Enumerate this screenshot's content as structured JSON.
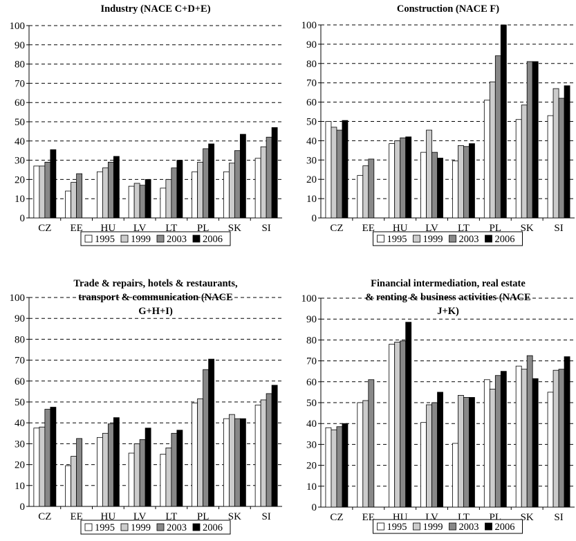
{
  "chart_data": [
    {
      "type": "bar",
      "title": "Industry (NACE C+D+E)",
      "categories": [
        "CZ",
        "EE",
        "HU",
        "LV",
        "LT",
        "PL",
        "SK",
        "SI"
      ],
      "ylim": [
        0,
        100
      ],
      "yticks": [
        0,
        10,
        20,
        30,
        40,
        50,
        60,
        70,
        80,
        90,
        100
      ],
      "grid": true,
      "legend": "bottom",
      "series": [
        {
          "name": "1995",
          "color": "#ffffff",
          "values": [
            27,
            14,
            24,
            16.5,
            15.5,
            24,
            24,
            31
          ]
        },
        {
          "name": "1999",
          "color": "#cccccc",
          "values": [
            27,
            18.5,
            26,
            18,
            20,
            29,
            28.5,
            37
          ]
        },
        {
          "name": "2003",
          "color": "#888888",
          "values": [
            29,
            23,
            29,
            17,
            26,
            36,
            35,
            42
          ]
        },
        {
          "name": "2006",
          "color": "#000000",
          "values": [
            35.5,
            null,
            32,
            20,
            30,
            38.5,
            43.5,
            47
          ]
        }
      ]
    },
    {
      "type": "bar",
      "title": "Construction (NACE F)",
      "categories": [
        "CZ",
        "EE",
        "HU",
        "LV",
        "LT",
        "PL",
        "SK",
        "SI"
      ],
      "ylim": [
        0,
        100
      ],
      "yticks": [
        0,
        10,
        20,
        30,
        40,
        50,
        60,
        70,
        80,
        90,
        100
      ],
      "grid": true,
      "legend": "bottom",
      "series": [
        {
          "name": "1995",
          "color": "#ffffff",
          "values": [
            50,
            22,
            38.5,
            34,
            29.5,
            61,
            51,
            53
          ]
        },
        {
          "name": "1999",
          "color": "#cccccc",
          "values": [
            47,
            27,
            40,
            45.5,
            37.5,
            70.5,
            58.5,
            67
          ]
        },
        {
          "name": "2003",
          "color": "#888888",
          "values": [
            45.5,
            30.5,
            41.5,
            34,
            37,
            84,
            81,
            62
          ]
        },
        {
          "name": "2006",
          "color": "#000000",
          "values": [
            50.5,
            null,
            42,
            31,
            38.5,
            100,
            81,
            68.5
          ]
        }
      ]
    },
    {
      "type": "bar",
      "title": "Trade & repairs, hotels & restaurants, transport & communication (NACE G+H+I)",
      "title_lines": [
        "Trade & repairs, hotels & restaurants,",
        "transport & communication (NACE",
        "G+H+I)"
      ],
      "categories": [
        "CZ",
        "EE",
        "HU",
        "LV",
        "LT",
        "PL",
        "SK",
        "SI"
      ],
      "ylim": [
        0,
        100
      ],
      "yticks": [
        0,
        10,
        20,
        30,
        40,
        50,
        60,
        70,
        80,
        90,
        100
      ],
      "grid": true,
      "legend": "bottom",
      "series": [
        {
          "name": "1995",
          "color": "#ffffff",
          "values": [
            37.5,
            19.5,
            33,
            25.5,
            25,
            49.5,
            42,
            48.5
          ]
        },
        {
          "name": "1999",
          "color": "#cccccc",
          "values": [
            38,
            24,
            35,
            30,
            28,
            51.5,
            44,
            51
          ]
        },
        {
          "name": "2003",
          "color": "#888888",
          "values": [
            46.5,
            32.5,
            39.5,
            32,
            35,
            65.5,
            42,
            54
          ]
        },
        {
          "name": "2006",
          "color": "#000000",
          "values": [
            47.5,
            null,
            42.5,
            37.5,
            36.5,
            70.5,
            42,
            58
          ]
        }
      ]
    },
    {
      "type": "bar",
      "title": "Financial intermediation, real estate & renting & business activities (NACE J+K)",
      "title_lines": [
        "Financial intermediation, real estate",
        "& renting & business activities (NACE",
        "J+K)"
      ],
      "categories": [
        "CZ",
        "EE",
        "HU",
        "LV",
        "LT",
        "PL",
        "SK",
        "SI"
      ],
      "ylim": [
        0,
        100
      ],
      "yticks": [
        0,
        10,
        20,
        30,
        40,
        50,
        60,
        70,
        80,
        90,
        100
      ],
      "grid": true,
      "legend": "bottom",
      "series": [
        {
          "name": "1995",
          "color": "#ffffff",
          "values": [
            38,
            50,
            78,
            40.5,
            30.5,
            61,
            67.5,
            55
          ]
        },
        {
          "name": "1999",
          "color": "#cccccc",
          "values": [
            37,
            51,
            79,
            49,
            53.5,
            56.5,
            66,
            65.5
          ]
        },
        {
          "name": "2003",
          "color": "#888888",
          "values": [
            38.5,
            61,
            79.5,
            50,
            52.5,
            63,
            72.5,
            66
          ]
        },
        {
          "name": "2006",
          "color": "#000000",
          "values": [
            40,
            null,
            88.5,
            55,
            52.5,
            65,
            61.5,
            72
          ]
        }
      ]
    }
  ]
}
